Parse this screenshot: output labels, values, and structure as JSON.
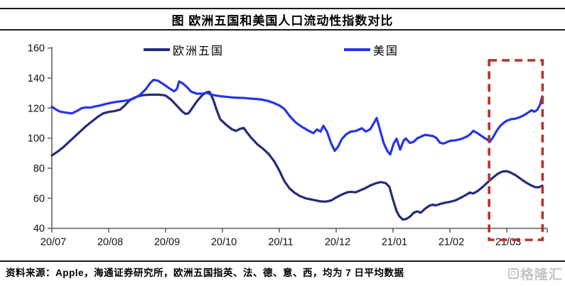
{
  "title": "图 欧洲五国和美国人口流动性指数对比",
  "footer": {
    "source_text": "资料来源：Apple，海通证券研究所，欧洲五国指英、法、德、意、西，均为 7 日平均数据"
  },
  "watermark": {
    "text": "格隆汇",
    "icon": "gelonghui-logo-square"
  },
  "colors": {
    "europe_line": "#242B7A",
    "us_line": "#2633EB",
    "highlight_box": "#B93128",
    "axis": "#666666",
    "axis_label": "#111111"
  },
  "chart_data": {
    "type": "line",
    "title": "图 欧洲五国和美国人口流动性指数对比",
    "grid": false,
    "legend_position": "top",
    "x_axis": {
      "unit": "year/month",
      "tick_labels": [
        "20/07",
        "20/08",
        "20/09",
        "20/10",
        "20/11",
        "20/12",
        "21/01",
        "21/02",
        "21/03"
      ],
      "months_shown": 8.72
    },
    "y_axis": {
      "ticks": [
        40,
        60,
        80,
        100,
        120,
        140,
        160
      ],
      "range": [
        40,
        160
      ]
    },
    "highlight_box": {
      "from_month": 7.69,
      "to_month": 8.63,
      "style": "dashed",
      "color": "#B93128",
      "note": "red dashed rectangle highlighting the 21/03 period"
    },
    "series": [
      {
        "id": "europe",
        "name": "欧洲五国",
        "color": "#242B7A",
        "points": [
          [
            0,
            88.5
          ],
          [
            0.1,
            91
          ],
          [
            0.2,
            94
          ],
          [
            0.3,
            97.5
          ],
          [
            0.4,
            101
          ],
          [
            0.5,
            104.5
          ],
          [
            0.6,
            108
          ],
          [
            0.7,
            111
          ],
          [
            0.8,
            114
          ],
          [
            0.9,
            116.5
          ],
          [
            1,
            117.5
          ],
          [
            1.1,
            118
          ],
          [
            1.2,
            119
          ],
          [
            1.275,
            121.5
          ],
          [
            1.35,
            124.5
          ],
          [
            1.425,
            126.5
          ],
          [
            1.5,
            127.8
          ],
          [
            1.6,
            128.6
          ],
          [
            1.7,
            128.9
          ],
          [
            1.8,
            129
          ],
          [
            1.9,
            128.9
          ],
          [
            2,
            128.4
          ],
          [
            2.1,
            125.5
          ],
          [
            2.2,
            121.5
          ],
          [
            2.3,
            117.5
          ],
          [
            2.35,
            116.2
          ],
          [
            2.4,
            116.5
          ],
          [
            2.45,
            119
          ],
          [
            2.55,
            124.5
          ],
          [
            2.65,
            128.8
          ],
          [
            2.725,
            130.6
          ],
          [
            2.775,
            130.8
          ],
          [
            2.84,
            125.5
          ],
          [
            2.9,
            118.5
          ],
          [
            2.963,
            112.5
          ],
          [
            3.063,
            109
          ],
          [
            3.163,
            106
          ],
          [
            3.238,
            104.8
          ],
          [
            3.313,
            106.3
          ],
          [
            3.375,
            106.8
          ],
          [
            3.438,
            103.5
          ],
          [
            3.513,
            100
          ],
          [
            3.613,
            96
          ],
          [
            3.713,
            93
          ],
          [
            3.813,
            89.5
          ],
          [
            3.913,
            84.5
          ],
          [
            4,
            78.5
          ],
          [
            4.088,
            71.5
          ],
          [
            4.175,
            66.8
          ],
          [
            4.263,
            63.8
          ],
          [
            4.363,
            61.5
          ],
          [
            4.463,
            60
          ],
          [
            4.588,
            59
          ],
          [
            4.713,
            58
          ],
          [
            4.813,
            57.7
          ],
          [
            4.913,
            58.5
          ],
          [
            5,
            60.5
          ],
          [
            5.1,
            62.5
          ],
          [
            5.2,
            64
          ],
          [
            5.275,
            64.3
          ],
          [
            5.338,
            63.9
          ],
          [
            5.425,
            65.3
          ],
          [
            5.5,
            66.5
          ],
          [
            5.6,
            68.5
          ],
          [
            5.7,
            70
          ],
          [
            5.788,
            70.8
          ],
          [
            5.875,
            70
          ],
          [
            5.938,
            67.5
          ],
          [
            6,
            59
          ],
          [
            6.063,
            51.5
          ],
          [
            6.113,
            48
          ],
          [
            6.175,
            45.8
          ],
          [
            6.238,
            46.3
          ],
          [
            6.3,
            47.8
          ],
          [
            6.363,
            50.3
          ],
          [
            6.425,
            51.3
          ],
          [
            6.488,
            50.4
          ],
          [
            6.563,
            53
          ],
          [
            6.638,
            55
          ],
          [
            6.7,
            55.8
          ],
          [
            6.75,
            55.2
          ],
          [
            6.838,
            56.3
          ],
          [
            6.913,
            57
          ],
          [
            7,
            57.6
          ],
          [
            7.1,
            58.6
          ],
          [
            7.2,
            60.5
          ],
          [
            7.3,
            62.6
          ],
          [
            7.35,
            63.8
          ],
          [
            7.413,
            63.2
          ],
          [
            7.488,
            64.8
          ],
          [
            7.575,
            67.5
          ],
          [
            7.663,
            70.5
          ],
          [
            7.75,
            73.5
          ],
          [
            7.838,
            76.2
          ],
          [
            7.925,
            77.8
          ],
          [
            8,
            78.1
          ],
          [
            8.075,
            77
          ],
          [
            8.163,
            75.2
          ],
          [
            8.25,
            72.8
          ],
          [
            8.338,
            70.5
          ],
          [
            8.425,
            68.7
          ],
          [
            8.5,
            67.4
          ],
          [
            8.563,
            67.3
          ],
          [
            8.625,
            68.4
          ]
        ]
      },
      {
        "id": "us",
        "name": "美国",
        "color": "#2633EB",
        "points": [
          [
            0,
            121
          ],
          [
            0.075,
            119
          ],
          [
            0.15,
            117.6
          ],
          [
            0.25,
            117
          ],
          [
            0.35,
            116.5
          ],
          [
            0.45,
            118.3
          ],
          [
            0.525,
            120
          ],
          [
            0.6,
            120.5
          ],
          [
            0.675,
            120.3
          ],
          [
            0.75,
            121
          ],
          [
            0.85,
            121.8
          ],
          [
            0.95,
            122.8
          ],
          [
            1.05,
            123.6
          ],
          [
            1.15,
            124.3
          ],
          [
            1.25,
            124.7
          ],
          [
            1.35,
            125.3
          ],
          [
            1.45,
            126.6
          ],
          [
            1.55,
            128.8
          ],
          [
            1.65,
            132.5
          ],
          [
            1.725,
            136.5
          ],
          [
            1.788,
            138.8
          ],
          [
            1.863,
            138.3
          ],
          [
            1.95,
            136.3
          ],
          [
            2.05,
            133.6
          ],
          [
            2.15,
            131.2
          ],
          [
            2.2,
            132.8
          ],
          [
            2.238,
            137.8
          ],
          [
            2.3,
            136.5
          ],
          [
            2.375,
            134
          ],
          [
            2.45,
            131
          ],
          [
            2.55,
            129.6
          ],
          [
            2.65,
            129.6
          ],
          [
            2.725,
            130.2
          ],
          [
            2.8,
            129
          ],
          [
            2.9,
            128.3
          ],
          [
            3,
            127.8
          ],
          [
            3.1,
            127.4
          ],
          [
            3.2,
            127
          ],
          [
            3.3,
            126.9
          ],
          [
            3.4,
            126.7
          ],
          [
            3.5,
            126.3
          ],
          [
            3.6,
            126.1
          ],
          [
            3.7,
            125.6
          ],
          [
            3.8,
            124.8
          ],
          [
            3.9,
            123.5
          ],
          [
            4,
            121.8
          ],
          [
            4.088,
            119.5
          ],
          [
            4.188,
            114.5
          ],
          [
            4.288,
            110.5
          ],
          [
            4.388,
            107.8
          ],
          [
            4.463,
            106.1
          ],
          [
            4.538,
            104.5
          ],
          [
            4.6,
            103.3
          ],
          [
            4.663,
            105.8
          ],
          [
            4.725,
            104.4
          ],
          [
            4.775,
            108.2
          ],
          [
            4.838,
            104.5
          ],
          [
            4.913,
            96.5
          ],
          [
            4.975,
            91.6
          ],
          [
            5.038,
            94.5
          ],
          [
            5.1,
            99.5
          ],
          [
            5.175,
            102.5
          ],
          [
            5.25,
            104.3
          ],
          [
            5.35,
            104.8
          ],
          [
            5.45,
            106.6
          ],
          [
            5.525,
            104.4
          ],
          [
            5.6,
            106
          ],
          [
            5.675,
            110.8
          ],
          [
            5.713,
            113.4
          ],
          [
            5.775,
            105
          ],
          [
            5.838,
            96.5
          ],
          [
            5.9,
            91.5
          ],
          [
            5.95,
            89.2
          ],
          [
            6.013,
            96.5
          ],
          [
            6.063,
            99.6
          ],
          [
            6.125,
            92.4
          ],
          [
            6.188,
            98.5
          ],
          [
            6.225,
            99.8
          ],
          [
            6.3,
            96.8
          ],
          [
            6.363,
            97.6
          ],
          [
            6.425,
            99.8
          ],
          [
            6.5,
            101.2
          ],
          [
            6.563,
            102.2
          ],
          [
            6.638,
            101.8
          ],
          [
            6.7,
            101.4
          ],
          [
            6.763,
            100.2
          ],
          [
            6.825,
            97
          ],
          [
            6.888,
            96.4
          ],
          [
            6.95,
            97.4
          ],
          [
            7,
            98.2
          ],
          [
            7.1,
            98.6
          ],
          [
            7.2,
            99.5
          ],
          [
            7.3,
            101.1
          ],
          [
            7.363,
            102.8
          ],
          [
            7.413,
            104.9
          ],
          [
            7.475,
            103.6
          ],
          [
            7.538,
            102
          ],
          [
            7.6,
            100.3
          ],
          [
            7.663,
            99
          ],
          [
            7.7,
            97.4
          ],
          [
            7.763,
            100.8
          ],
          [
            7.825,
            105
          ],
          [
            7.888,
            108.2
          ],
          [
            7.95,
            110.3
          ],
          [
            8,
            111.6
          ],
          [
            8.075,
            112.6
          ],
          [
            8.15,
            113
          ],
          [
            8.225,
            113.9
          ],
          [
            8.3,
            115.2
          ],
          [
            8.375,
            117
          ],
          [
            8.438,
            118.6
          ],
          [
            8.488,
            117.6
          ],
          [
            8.538,
            118.9
          ],
          [
            8.588,
            122.5
          ],
          [
            8.625,
            127.8
          ]
        ]
      }
    ]
  }
}
